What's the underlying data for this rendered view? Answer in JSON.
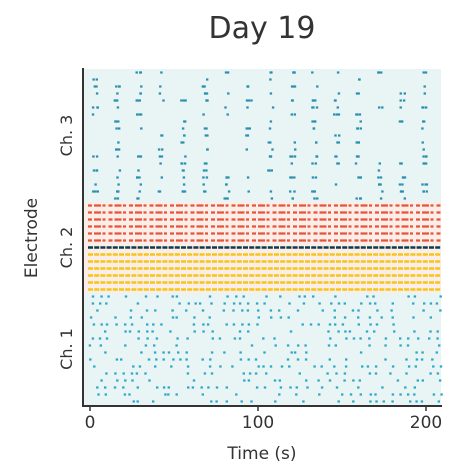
{
  "chart_data": {
    "type": "raster",
    "title": "Day 19",
    "xlabel": "Time (s)",
    "ylabel": "Electrode",
    "xlim": [
      0,
      200
    ],
    "xticks": [
      0,
      100,
      200
    ],
    "xtick_labels": [
      "0",
      "100",
      "200"
    ],
    "rows_total": 48,
    "grid": false,
    "groups": [
      {
        "label": "Ch. 1",
        "row_start": 0,
        "row_end": 16,
        "background": "#e9f4f4"
      },
      {
        "label": "Ch. 2",
        "row_start": 16,
        "row_end": 29,
        "background": "#fbeee9"
      },
      {
        "label": "Ch. 3",
        "row_start": 29,
        "row_end": 48,
        "background": "#e9f4f4"
      }
    ],
    "series": [
      {
        "color": "#2aa8c8",
        "rows": [
          0,
          1,
          2,
          3,
          4,
          5,
          6,
          7,
          8,
          9,
          10,
          11,
          12,
          13,
          14,
          15
        ],
        "activity": "sparse"
      },
      {
        "color": "#f5c518",
        "rows": [
          16,
          17,
          18,
          19,
          20,
          21
        ],
        "activity": "dense"
      },
      {
        "color": "#0d3b4c",
        "rows": [
          22
        ],
        "activity": "dense"
      },
      {
        "color": "#e8533a",
        "rows": [
          23,
          24,
          25,
          26,
          27,
          28
        ],
        "activity": "medium"
      },
      {
        "color": "#2a8fb0",
        "rows": [
          29,
          30,
          31,
          32,
          33,
          34,
          35,
          36,
          37,
          38,
          39,
          40,
          41,
          42,
          43,
          44,
          45,
          46,
          47
        ],
        "activity": "bursty"
      }
    ]
  }
}
